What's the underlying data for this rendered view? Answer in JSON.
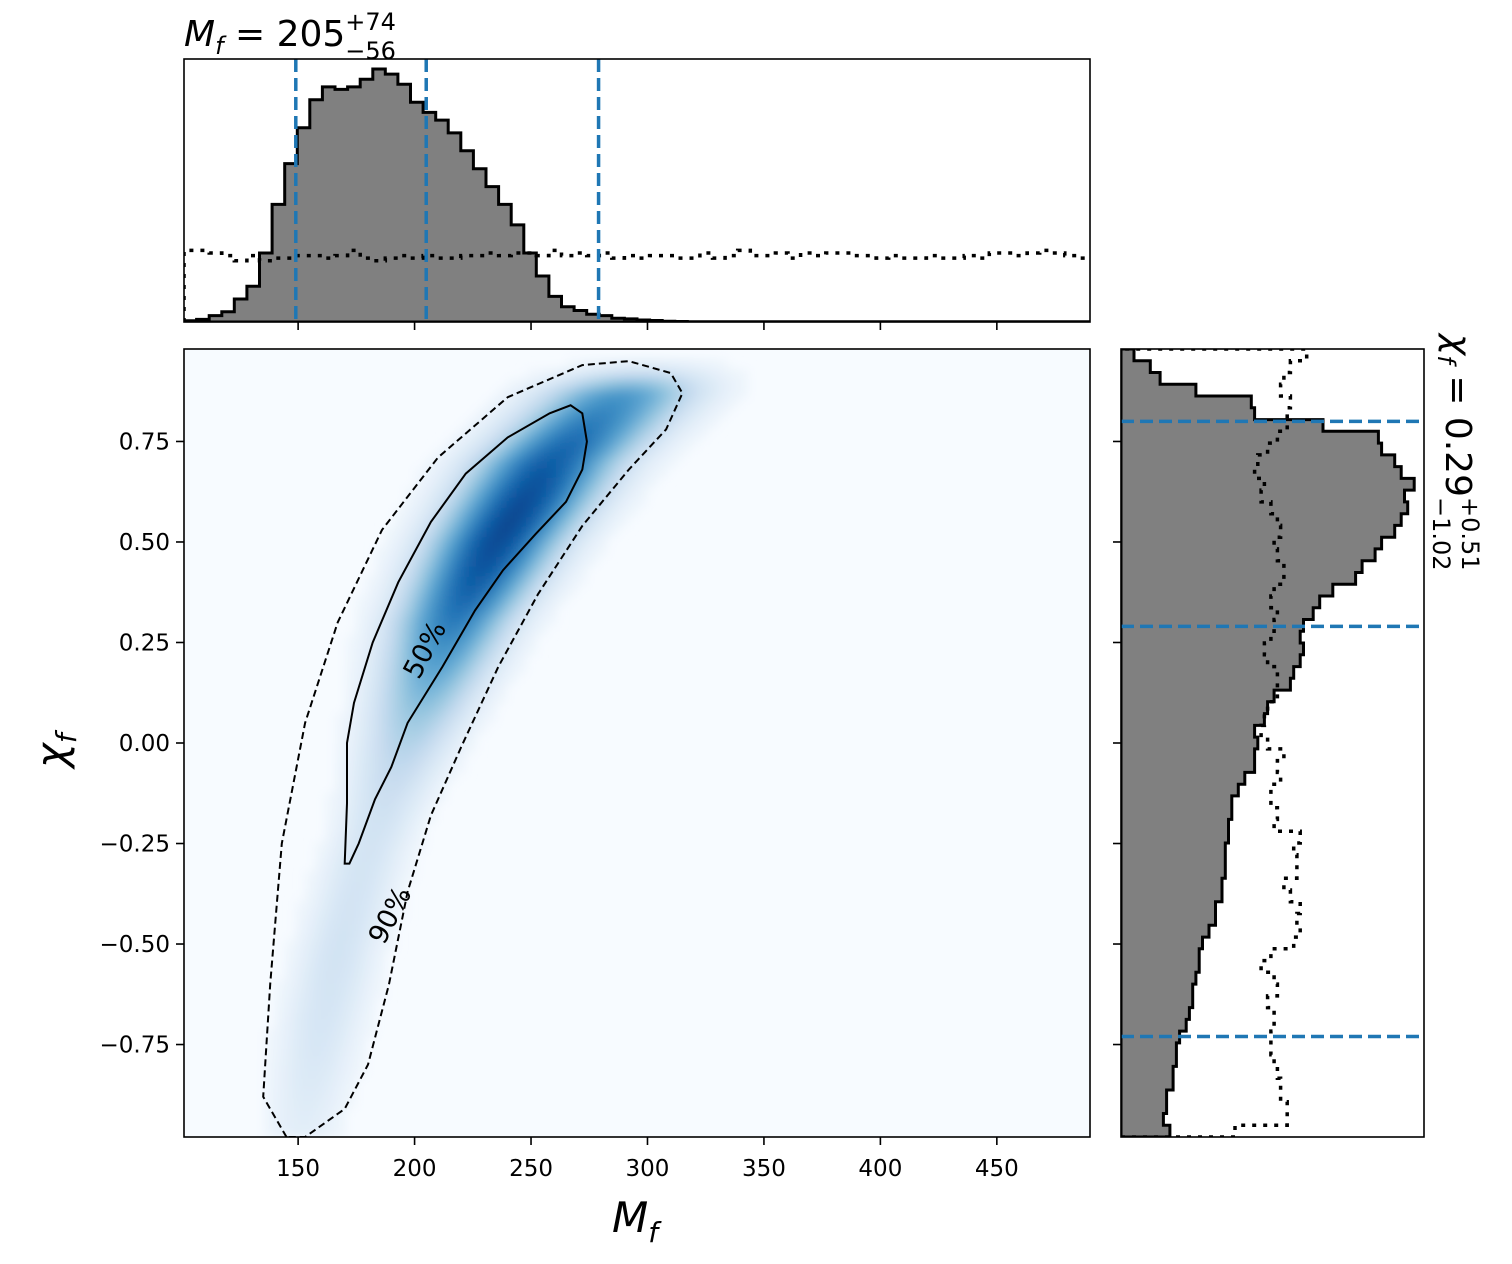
{
  "chart_data": {
    "type": "corner-plot",
    "joint": {
      "type": "heatmap",
      "xlabel_base": "M",
      "xlabel_sub": "f",
      "ylabel_base": "χ",
      "ylabel_sub": "f",
      "xlim": [
        101,
        490
      ],
      "ylim": [
        -0.98,
        0.98
      ],
      "xticks": [
        150,
        200,
        250,
        300,
        350,
        400,
        450
      ],
      "yticks": [
        0.75,
        0.5,
        0.25,
        0.0,
        -0.25,
        -0.5,
        -0.75
      ],
      "ytick_labels": [
        "0.75",
        "0.50",
        "0.25",
        "0.00",
        "−0.25",
        "−0.50",
        "−0.75"
      ],
      "colormap": "Blues",
      "density_ridge": {
        "chi": [
          -0.95,
          -0.7,
          -0.5,
          -0.3,
          -0.1,
          0.1,
          0.3,
          0.5,
          0.7,
          0.85
        ],
        "mass": [
          152,
          160,
          168,
          178,
          190,
          203,
          216,
          235,
          258,
          285
        ],
        "peak_chi": 0.55
      },
      "contours": [
        {
          "label": "50%",
          "style": "solid",
          "label_at": [
            205,
            0.23
          ],
          "points": [
            [
              170,
              -0.3
            ],
            [
              171,
              -0.15
            ],
            [
              171,
              0.0
            ],
            [
              174,
              0.1
            ],
            [
              182,
              0.25
            ],
            [
              193,
              0.4
            ],
            [
              207,
              0.55
            ],
            [
              222,
              0.67
            ],
            [
              240,
              0.76
            ],
            [
              258,
              0.82
            ],
            [
              267,
              0.84
            ],
            [
              272,
              0.82
            ],
            [
              274,
              0.75
            ],
            [
              272,
              0.68
            ],
            [
              265,
              0.6
            ],
            [
              252,
              0.52
            ],
            [
              238,
              0.43
            ],
            [
              226,
              0.33
            ],
            [
              212,
              0.19
            ],
            [
              197,
              0.05
            ],
            [
              190,
              -0.06
            ],
            [
              183,
              -0.14
            ],
            [
              176,
              -0.25
            ],
            [
              172,
              -0.3
            ]
          ]
        },
        {
          "label": "90%",
          "style": "dashed",
          "label_at": [
            190,
            -0.43
          ],
          "points": [
            [
              145,
              -0.98
            ],
            [
              135,
              -0.88
            ],
            [
              138,
              -0.6
            ],
            [
              143,
              -0.25
            ],
            [
              153,
              0.05
            ],
            [
              167,
              0.3
            ],
            [
              186,
              0.53
            ],
            [
              210,
              0.71
            ],
            [
              240,
              0.86
            ],
            [
              272,
              0.94
            ],
            [
              292,
              0.95
            ],
            [
              310,
              0.92
            ],
            [
              315,
              0.87
            ],
            [
              308,
              0.78
            ],
            [
              292,
              0.68
            ],
            [
              272,
              0.54
            ],
            [
              253,
              0.37
            ],
            [
              236,
              0.19
            ],
            [
              220,
              -0.01
            ],
            [
              207,
              -0.18
            ],
            [
              197,
              -0.37
            ],
            [
              189,
              -0.6
            ],
            [
              180,
              -0.8
            ],
            [
              170,
              -0.91
            ],
            [
              153,
              -0.98
            ]
          ]
        }
      ]
    },
    "marginal_x": {
      "title_base": "M",
      "title_sub": "f",
      "title_value": " = 205",
      "title_plus": "+74",
      "title_minus": "−56",
      "hist_edges": [
        101,
        490
      ],
      "posterior": [
        0.005,
        0.01,
        0.025,
        0.04,
        0.09,
        0.14,
        0.27,
        0.46,
        0.62,
        0.76,
        0.87,
        0.92,
        0.91,
        0.92,
        0.95,
        0.99,
        0.97,
        0.93,
        0.86,
        0.82,
        0.79,
        0.74,
        0.67,
        0.6,
        0.53,
        0.46,
        0.38,
        0.27,
        0.18,
        0.1,
        0.06,
        0.045,
        0.03,
        0.025,
        0.015,
        0.012,
        0.008,
        0.006,
        0.003,
        0.002,
        0.001,
        0.001,
        0.001,
        0.001,
        0.001,
        0.001,
        0.001,
        0.001,
        0.001,
        0.001,
        0.001,
        0.001,
        0.001,
        0.001,
        0.001,
        0.001,
        0.001,
        0.001,
        0.001,
        0.001,
        0.001,
        0.001,
        0.001,
        0.001,
        0.001,
        0.001,
        0.001,
        0.001,
        0.001,
        0.001,
        0.001,
        0.001
      ],
      "prior": [
        0.28,
        0.28,
        0.27,
        0.26,
        0.24,
        0.26,
        0.24,
        0.25,
        0.25,
        0.26,
        0.26,
        0.25,
        0.26,
        0.28,
        0.25,
        0.24,
        0.25,
        0.26,
        0.25,
        0.26,
        0.25,
        0.25,
        0.26,
        0.26,
        0.27,
        0.26,
        0.27,
        0.27,
        0.26,
        0.28,
        0.26,
        0.27,
        0.26,
        0.27,
        0.25,
        0.26,
        0.25,
        0.26,
        0.26,
        0.25,
        0.25,
        0.27,
        0.25,
        0.26,
        0.28,
        0.26,
        0.26,
        0.27,
        0.25,
        0.27,
        0.26,
        0.27,
        0.27,
        0.26,
        0.26,
        0.25,
        0.26,
        0.25,
        0.25,
        0.26,
        0.25,
        0.25,
        0.26,
        0.25,
        0.27,
        0.27,
        0.26,
        0.27,
        0.28,
        0.27,
        0.26,
        0.25
      ],
      "quantile_lines": [
        149,
        205,
        279
      ],
      "xticks": [
        150,
        200,
        250,
        300,
        350,
        400,
        450
      ]
    },
    "marginal_y": {
      "title_base": "χ",
      "title_sub": "f",
      "title_value": " = 0.29",
      "title_plus": "+0.51",
      "title_minus": "−1.02",
      "posterior": [
        0.15,
        0.13,
        0.14,
        0.14,
        0.16,
        0.16,
        0.17,
        0.17,
        0.18,
        0.2,
        0.21,
        0.22,
        0.22,
        0.23,
        0.24,
        0.24,
        0.25,
        0.27,
        0.29,
        0.29,
        0.31,
        0.31,
        0.32,
        0.32,
        0.32,
        0.33,
        0.33,
        0.34,
        0.34,
        0.36,
        0.38,
        0.41,
        0.41,
        0.42,
        0.41,
        0.44,
        0.45,
        0.47,
        0.52,
        0.53,
        0.55,
        0.56,
        0.55,
        0.56,
        0.59,
        0.61,
        0.65,
        0.72,
        0.74,
        0.78,
        0.8,
        0.84,
        0.86,
        0.88,
        0.87,
        0.9,
        0.86,
        0.84,
        0.8,
        0.79,
        0.62,
        0.41,
        0.4,
        0.23,
        0.12,
        0.09,
        0.04
      ],
      "prior": [
        0.35,
        0.51,
        0.51,
        0.49,
        0.49,
        0.48,
        0.47,
        0.46,
        0.46,
        0.47,
        0.47,
        0.45,
        0.48,
        0.47,
        0.43,
        0.46,
        0.53,
        0.55,
        0.54,
        0.55,
        0.52,
        0.5,
        0.54,
        0.54,
        0.53,
        0.55,
        0.47,
        0.48,
        0.46,
        0.46,
        0.49,
        0.48,
        0.5,
        0.45,
        0.43,
        0.44,
        0.45,
        0.48,
        0.48,
        0.48,
        0.45,
        0.44,
        0.46,
        0.47,
        0.48,
        0.46,
        0.47,
        0.5,
        0.5,
        0.48,
        0.47,
        0.49,
        0.48,
        0.46,
        0.43,
        0.44,
        0.41,
        0.42,
        0.45,
        0.48,
        0.51,
        0.51,
        0.52,
        0.49,
        0.5,
        0.52,
        0.57
      ],
      "quantile_lines": [
        -0.73,
        0.29,
        0.8
      ]
    }
  }
}
